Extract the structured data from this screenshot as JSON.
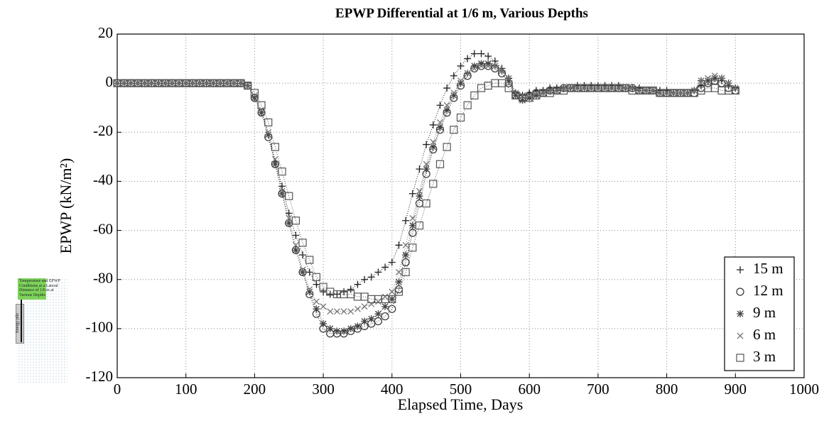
{
  "chart_data": {
    "type": "line",
    "title": "EPWP Differential at 1/6 m, Various Depths",
    "xlabel": "Elapsed Time, Days",
    "ylabel": "EPWP (kN/m²)",
    "xlim": [
      0,
      1000
    ],
    "ylim": [
      -120,
      20
    ],
    "xticks": [
      0,
      100,
      200,
      300,
      400,
      500,
      600,
      700,
      800,
      900,
      1000
    ],
    "yticks": [
      -120,
      -100,
      -80,
      -60,
      -40,
      -20,
      0,
      20
    ],
    "grid": true,
    "legend": "lower right",
    "x": [
      0,
      10,
      20,
      30,
      40,
      50,
      60,
      70,
      80,
      90,
      100,
      110,
      120,
      130,
      140,
      150,
      160,
      170,
      180,
      190,
      200,
      210,
      220,
      230,
      240,
      250,
      260,
      270,
      280,
      290,
      300,
      310,
      320,
      330,
      340,
      350,
      360,
      370,
      380,
      390,
      400,
      410,
      420,
      430,
      440,
      450,
      460,
      470,
      480,
      490,
      500,
      510,
      520,
      530,
      540,
      550,
      560,
      570,
      580,
      590,
      600,
      610,
      620,
      630,
      640,
      650,
      660,
      670,
      680,
      690,
      700,
      710,
      720,
      730,
      740,
      750,
      760,
      770,
      780,
      790,
      800,
      810,
      820,
      830,
      840,
      850,
      860,
      870,
      880,
      890,
      900
    ],
    "series": [
      {
        "name": "15 m",
        "color": "#222222",
        "marker": "plus",
        "values": [
          0,
          0,
          0,
          0,
          0,
          0,
          0,
          0,
          0,
          0,
          0,
          0,
          0,
          0,
          0,
          0,
          0,
          0,
          0,
          -1,
          -6,
          -12,
          -21,
          -32,
          -42,
          -53,
          -62,
          -70,
          -77,
          -82,
          -85,
          -86,
          -86,
          -85,
          -84,
          -82,
          -80,
          -79,
          -77,
          -75,
          -73,
          -66,
          -56,
          -45,
          -35,
          -25,
          -17,
          -9,
          -2,
          3,
          7,
          10,
          12,
          12,
          11,
          9,
          6,
          2,
          -4,
          -5,
          -4,
          -3,
          -3,
          -2,
          -2,
          -2,
          -2,
          -1,
          -1,
          -1,
          -1,
          -1,
          -1,
          -1,
          -2,
          -2,
          -2,
          -3,
          -3,
          -3,
          -3,
          -4,
          -4,
          -4,
          -3,
          -1,
          1,
          2,
          1,
          -1,
          -2
        ]
      },
      {
        "name": "12 m",
        "color": "#333333",
        "marker": "circle",
        "values": [
          0,
          0,
          0,
          0,
          0,
          0,
          0,
          0,
          0,
          0,
          0,
          0,
          0,
          0,
          0,
          0,
          0,
          0,
          0,
          -1,
          -6,
          -12,
          -22,
          -33,
          -45,
          -57,
          -68,
          -77,
          -86,
          -94,
          -100,
          -102,
          -102,
          -102,
          -101,
          -100,
          -99,
          -98,
          -97,
          -95,
          -92,
          -84,
          -73,
          -61,
          -49,
          -37,
          -27,
          -19,
          -12,
          -6,
          -1,
          3,
          6,
          7,
          7,
          6,
          4,
          0,
          -5,
          -6,
          -5,
          -4,
          -4,
          -3,
          -3,
          -2,
          -2,
          -2,
          -2,
          -2,
          -2,
          -2,
          -2,
          -2,
          -2,
          -2,
          -3,
          -3,
          -3,
          -4,
          -4,
          -4,
          -4,
          -4,
          -4,
          -2,
          0,
          1,
          0,
          -2,
          -3
        ]
      },
      {
        "name": "9 m",
        "color": "#444444",
        "marker": "asterisk",
        "values": [
          0,
          0,
          0,
          0,
          0,
          0,
          0,
          0,
          0,
          0,
          0,
          0,
          0,
          0,
          0,
          0,
          0,
          0,
          0,
          -1,
          -6,
          -12,
          -21,
          -33,
          -45,
          -57,
          -68,
          -77,
          -85,
          -92,
          -98,
          -100,
          -101,
          -101,
          -100,
          -99,
          -97,
          -96,
          -94,
          -91,
          -88,
          -81,
          -70,
          -58,
          -46,
          -35,
          -26,
          -18,
          -11,
          -5,
          0,
          4,
          7,
          8,
          8,
          7,
          5,
          1,
          -5,
          -7,
          -6,
          -5,
          -4,
          -3,
          -3,
          -2,
          -2,
          -2,
          -2,
          -2,
          -2,
          -2,
          -2,
          -2,
          -2,
          -2,
          -3,
          -3,
          -3,
          -4,
          -4,
          -4,
          -4,
          -4,
          -3,
          1,
          1,
          2,
          2,
          0,
          -2
        ]
      },
      {
        "name": "6 m",
        "color": "#777777",
        "marker": "cross",
        "values": [
          0,
          0,
          0,
          0,
          0,
          0,
          0,
          0,
          0,
          0,
          0,
          0,
          0,
          0,
          0,
          0,
          0,
          0,
          0,
          -1,
          -5,
          -11,
          -20,
          -31,
          -44,
          -55,
          -66,
          -76,
          -84,
          -89,
          -91,
          -93,
          -93,
          -93,
          -93,
          -92,
          -91,
          -90,
          -89,
          -87,
          -85,
          -77,
          -66,
          -55,
          -44,
          -33,
          -24,
          -16,
          -9,
          -4,
          1,
          4,
          6,
          7,
          7,
          7,
          5,
          2,
          -4,
          -5,
          -5,
          -4,
          -4,
          -3,
          -3,
          -2,
          -2,
          -2,
          -2,
          -2,
          -2,
          -2,
          -2,
          -2,
          -2,
          -2,
          -3,
          -3,
          -3,
          -4,
          -4,
          -4,
          -4,
          -4,
          -3,
          1,
          2,
          3,
          2,
          0,
          -2
        ]
      },
      {
        "name": "3 m",
        "color": "#555555",
        "marker": "square",
        "values": [
          0,
          0,
          0,
          0,
          0,
          0,
          0,
          0,
          0,
          0,
          0,
          0,
          0,
          0,
          0,
          0,
          0,
          0,
          0,
          -1,
          -4,
          -9,
          -16,
          -26,
          -36,
          -46,
          -56,
          -65,
          -72,
          -79,
          -83,
          -85,
          -86,
          -86,
          -86,
          -87,
          -87,
          -88,
          -88,
          -88,
          -88,
          -85,
          -77,
          -67,
          -58,
          -49,
          -41,
          -33,
          -26,
          -19,
          -14,
          -9,
          -5,
          -2,
          -1,
          0,
          0,
          -2,
          -5,
          -6,
          -6,
          -5,
          -4,
          -4,
          -3,
          -3,
          -2,
          -2,
          -2,
          -2,
          -2,
          -2,
          -2,
          -2,
          -2,
          -3,
          -3,
          -3,
          -3,
          -4,
          -4,
          -4,
          -4,
          -4,
          -4,
          -3,
          -2,
          -2,
          -3,
          -3,
          -3
        ]
      }
    ]
  },
  "inset": {
    "caption": "Temperature and EPWP Conditions at a Lateral Distance of 1/6 m at Various Depths",
    "pile_label": "Energy pile"
  }
}
